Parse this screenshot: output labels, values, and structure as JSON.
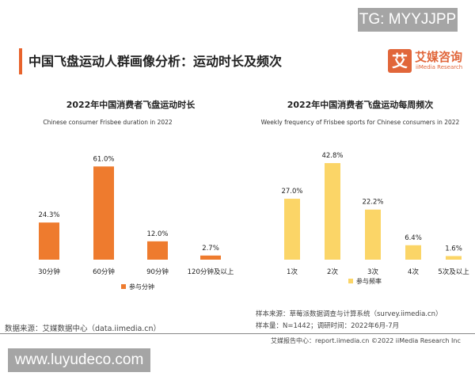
{
  "watermarks": {
    "top": "TG: MYYJJPP",
    "bottom": "www.luyudeco.com"
  },
  "header": {
    "title": "中国飞盘运动人群画像分析：运动时长及频次",
    "logo_glyph": "艾",
    "logo_cn": "艾媒咨询",
    "logo_en": "iiMedia Research"
  },
  "colors": {
    "left": "#ee7b2e",
    "right": "#fbd567",
    "accent": "#e8632c"
  },
  "chart_data": [
    {
      "type": "bar",
      "title": "2022年中国消费者飞盘运动时长",
      "subtitle": "Chinese consumer Frisbee duration in 2022",
      "categories": [
        "30分钟",
        "60分钟",
        "90分钟",
        "120分钟及以上"
      ],
      "values": [
        24.3,
        61.0,
        12.0,
        2.7
      ],
      "labels": [
        "24.3%",
        "61.0%",
        "12.0%",
        "2.7%"
      ],
      "series": [
        {
          "name": "参与分钟",
          "values": [
            24.3,
            61.0,
            12.0,
            2.7
          ]
        }
      ],
      "legend": "bottom",
      "grid": false
    },
    {
      "type": "bar",
      "title": "2022年中国消费者飞盘运动每周频次",
      "subtitle": "Weekly frequency of Frisbee sports for Chinese consumers in 2022",
      "categories": [
        "1次",
        "2次",
        "3次",
        "4次",
        "5次及以上"
      ],
      "values": [
        27.0,
        42.8,
        22.2,
        6.4,
        1.6
      ],
      "labels": [
        "27.0%",
        "42.8%",
        "22.2%",
        "6.4%",
        "1.6%"
      ],
      "series": [
        {
          "name": "参与频率",
          "values": [
            27.0,
            42.8,
            22.2,
            6.4,
            1.6
          ]
        }
      ],
      "legend": "bottom",
      "grid": false
    }
  ],
  "footer": {
    "source": "数据来源：艾媒数据中心（data.iimedia.cn）",
    "sample_source": "样本来源：草莓派数据调查与计算系统（survey.iimedia.cn）",
    "sample_size": "样本量：N=1442；调研时间：2022年6月-7月",
    "copyright": "艾媒报告中心：report.iimedia.cn ©2022 iiMedia Research Inc"
  }
}
